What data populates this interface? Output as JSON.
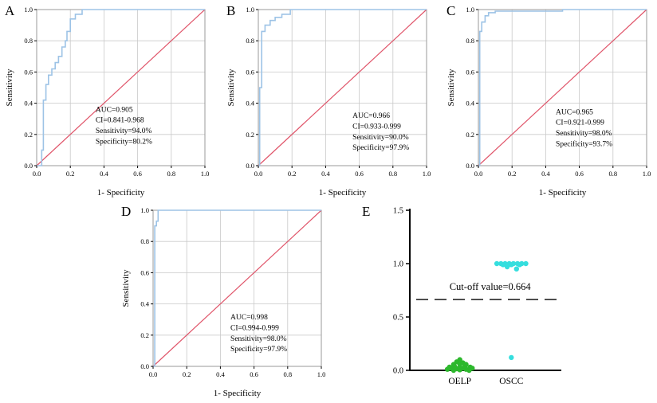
{
  "panels": [
    {
      "label": "A"
    },
    {
      "label": "B"
    },
    {
      "label": "C"
    },
    {
      "label": "D"
    },
    {
      "label": "E"
    }
  ],
  "chart_data": [
    {
      "id": "A",
      "type": "line",
      "subtype": "roc",
      "title": "",
      "xlabel": "1- Specificity",
      "ylabel": "Sensitivity",
      "xlim": [
        0,
        1
      ],
      "ylim": [
        0,
        1
      ],
      "ticks": [
        0,
        0.2,
        0.4,
        0.6,
        0.8,
        1.0
      ],
      "grid": true,
      "diagonal": true,
      "curve_color": "#9dc3e6",
      "diagonal_color": "#e0556a",
      "points": [
        [
          0,
          0
        ],
        [
          0.03,
          0
        ],
        [
          0.03,
          0.1
        ],
        [
          0.04,
          0.1
        ],
        [
          0.04,
          0.42
        ],
        [
          0.055,
          0.42
        ],
        [
          0.055,
          0.52
        ],
        [
          0.07,
          0.52
        ],
        [
          0.07,
          0.58
        ],
        [
          0.09,
          0.58
        ],
        [
          0.09,
          0.62
        ],
        [
          0.11,
          0.62
        ],
        [
          0.11,
          0.66
        ],
        [
          0.13,
          0.66
        ],
        [
          0.13,
          0.7
        ],
        [
          0.15,
          0.7
        ],
        [
          0.15,
          0.76
        ],
        [
          0.17,
          0.76
        ],
        [
          0.17,
          0.8
        ],
        [
          0.18,
          0.8
        ],
        [
          0.18,
          0.86
        ],
        [
          0.2,
          0.86
        ],
        [
          0.2,
          0.94
        ],
        [
          0.23,
          0.94
        ],
        [
          0.23,
          0.97
        ],
        [
          0.27,
          0.97
        ],
        [
          0.27,
          1.0
        ],
        [
          1,
          1
        ]
      ],
      "annotation": [
        "AUC=0.905",
        "CI=0.841-0.968",
        "Sensitivity=94.0%",
        "Specificity=80.2%"
      ],
      "annotation_pos": [
        0.35,
        0.345
      ],
      "auc": 0.905,
      "ci": "0.841-0.968",
      "sensitivity_pct": 94.0,
      "specificity_pct": 80.2
    },
    {
      "id": "B",
      "type": "line",
      "subtype": "roc",
      "title": "",
      "xlabel": "1- Specificity",
      "ylabel": "Sensitivity",
      "xlim": [
        0,
        1
      ],
      "ylim": [
        0,
        1
      ],
      "ticks": [
        0,
        0.2,
        0.4,
        0.6,
        0.8,
        1.0
      ],
      "grid": true,
      "diagonal": true,
      "curve_color": "#9dc3e6",
      "diagonal_color": "#e0556a",
      "points": [
        [
          0,
          0
        ],
        [
          0.008,
          0
        ],
        [
          0.008,
          0.5
        ],
        [
          0.02,
          0.5
        ],
        [
          0.02,
          0.86
        ],
        [
          0.04,
          0.86
        ],
        [
          0.04,
          0.9
        ],
        [
          0.07,
          0.9
        ],
        [
          0.07,
          0.93
        ],
        [
          0.1,
          0.93
        ],
        [
          0.1,
          0.95
        ],
        [
          0.14,
          0.95
        ],
        [
          0.14,
          0.97
        ],
        [
          0.19,
          0.97
        ],
        [
          0.19,
          1.0
        ],
        [
          1,
          1
        ]
      ],
      "annotation": [
        "AUC=0.966",
        "CI=0.933-0.999",
        "Sensitivity=90.0%",
        "Specificity=97.9%"
      ],
      "annotation_pos": [
        0.56,
        0.305
      ],
      "auc": 0.966,
      "ci": "0.933-0.999",
      "sensitivity_pct": 90.0,
      "specificity_pct": 97.9
    },
    {
      "id": "C",
      "type": "line",
      "subtype": "roc",
      "title": "",
      "xlabel": "1- Specificity",
      "ylabel": "Sensitivity",
      "xlim": [
        0,
        1
      ],
      "ylim": [
        0,
        1
      ],
      "ticks": [
        0,
        0.2,
        0.4,
        0.6,
        0.8,
        1.0
      ],
      "grid": true,
      "diagonal": true,
      "curve_color": "#9dc3e6",
      "diagonal_color": "#e0556a",
      "points": [
        [
          0,
          0
        ],
        [
          0.008,
          0
        ],
        [
          0.008,
          0.86
        ],
        [
          0.02,
          0.86
        ],
        [
          0.02,
          0.92
        ],
        [
          0.04,
          0.92
        ],
        [
          0.04,
          0.96
        ],
        [
          0.06,
          0.96
        ],
        [
          0.06,
          0.98
        ],
        [
          0.1,
          0.98
        ],
        [
          0.1,
          0.99
        ],
        [
          0.5,
          0.99
        ],
        [
          0.5,
          1.0
        ],
        [
          1,
          1
        ]
      ],
      "annotation": [
        "AUC=0.965",
        "CI=0.921-0.999",
        "Sensitivity=98.0%",
        "Specificity=93.7%"
      ],
      "annotation_pos": [
        0.46,
        0.33
      ],
      "auc": 0.965,
      "ci": "0.921-0.999",
      "sensitivity_pct": 98.0,
      "specificity_pct": 93.7
    },
    {
      "id": "D",
      "type": "line",
      "subtype": "roc",
      "title": "",
      "xlabel": "1- Specificity",
      "ylabel": "Sensitivity",
      "xlim": [
        0,
        1
      ],
      "ylim": [
        0,
        1
      ],
      "ticks": [
        0,
        0.2,
        0.4,
        0.6,
        0.8,
        1.0
      ],
      "grid": true,
      "diagonal": true,
      "curve_color": "#9dc3e6",
      "diagonal_color": "#e0556a",
      "points": [
        [
          0,
          0
        ],
        [
          0.01,
          0
        ],
        [
          0.01,
          0.9
        ],
        [
          0.02,
          0.9
        ],
        [
          0.02,
          0.93
        ],
        [
          0.03,
          0.93
        ],
        [
          0.03,
          1.0
        ],
        [
          1,
          1
        ]
      ],
      "annotation": [
        "AUC=0.998",
        "CI=0.994-0.999",
        "Sensitivity=98.0%",
        "Specificity=97.9%"
      ],
      "annotation_pos": [
        0.46,
        0.3
      ],
      "auc": 0.998,
      "ci": "0.994-0.999",
      "sensitivity_pct": 98.0,
      "specificity_pct": 97.9
    },
    {
      "id": "E",
      "type": "scatter",
      "subtype": "dotplot",
      "title": "",
      "xlabel": "",
      "ylabel": "",
      "ylim": [
        0,
        1.5
      ],
      "yticks": [
        "0.0",
        "0.5",
        "1.0",
        "1.5"
      ],
      "categories": [
        "OELP",
        "OSCC"
      ],
      "cutoff": 0.664,
      "cutoff_label": "Cut-off value=0.664",
      "series": [
        {
          "name": "OELP",
          "color": "#2db82d",
          "points": [
            [
              -0.12,
              0.01
            ],
            [
              -0.09,
              0.02
            ],
            [
              -0.06,
              0.0
            ],
            [
              -0.03,
              0.015
            ],
            [
              0.0,
              0.005
            ],
            [
              0.03,
              0.02
            ],
            [
              0.06,
              0.01
            ],
            [
              0.09,
              0.0
            ],
            [
              0.12,
              0.02
            ],
            [
              -0.1,
              0.03
            ],
            [
              -0.05,
              0.035
            ],
            [
              0.0,
              0.03
            ],
            [
              0.05,
              0.04
            ],
            [
              0.1,
              0.03
            ],
            [
              -0.06,
              0.055
            ],
            [
              0.0,
              0.06
            ],
            [
              0.06,
              0.055
            ],
            [
              -0.03,
              0.08
            ],
            [
              0.03,
              0.07
            ],
            [
              0.0,
              0.1
            ]
          ]
        },
        {
          "name": "OSCC",
          "color": "#35dede",
          "points": [
            [
              -0.14,
              1.0
            ],
            [
              -0.1,
              1.0
            ],
            [
              -0.06,
              1.0
            ],
            [
              -0.02,
              1.0
            ],
            [
              0.02,
              1.0
            ],
            [
              0.06,
              1.0
            ],
            [
              0.1,
              1.0
            ],
            [
              0.14,
              1.0
            ],
            [
              -0.08,
              0.99
            ],
            [
              0.0,
              0.99
            ],
            [
              0.08,
              0.99
            ],
            [
              -0.04,
              0.97
            ],
            [
              0.05,
              0.95
            ],
            [
              0.0,
              0.12
            ]
          ]
        }
      ]
    }
  ]
}
